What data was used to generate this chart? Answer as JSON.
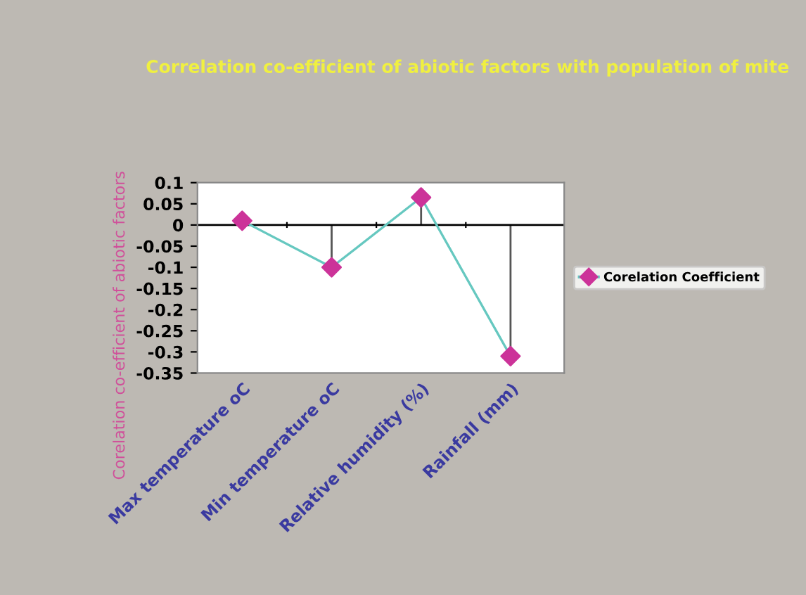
{
  "chart_data": {
    "type": "line",
    "title": "Correlation co-efficient of abiotic factors with population of mite",
    "ylabel": "Corelation co-efficient of abiotic factors",
    "categories": [
      "Max temperature oC",
      "Min temperature oC",
      "Relative humidity (%)",
      "Rainfall (mm)"
    ],
    "series": [
      {
        "name": "Corelation Coefficient",
        "color": "#66c8c0",
        "colors": [
          "#cc3399",
          "#cc3399",
          "#cc3399",
          "#cc3399"
        ],
        "values": [
          0.01,
          -0.1,
          0.065,
          -0.31
        ],
        "errors": [
          null,
          [
            -0.1,
            0
          ],
          [
            0,
            0.065
          ],
          [
            -0.31,
            0
          ]
        ]
      }
    ],
    "ylim": [
      -0.35,
      0.1
    ],
    "yticks": [
      0.1,
      0.05,
      0,
      -0.05,
      -0.1,
      -0.15,
      -0.2,
      -0.25,
      -0.3,
      -0.35
    ],
    "ref_lines": [
      {
        "axis": "y",
        "value": 0,
        "color": "#000000"
      }
    ],
    "marker": "diamond",
    "line_style": "solid",
    "grid": false,
    "legend": "right"
  }
}
